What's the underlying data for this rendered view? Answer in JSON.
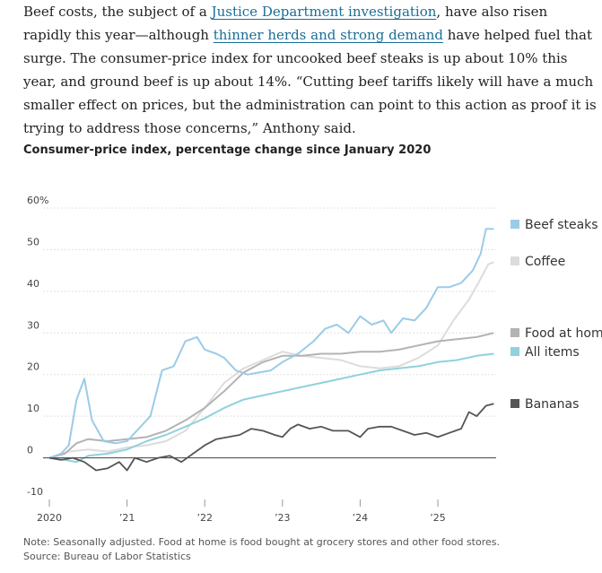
{
  "article": {
    "p1": "Beef costs, the subject of a ",
    "link1": "Justice Department investigation",
    "p2": ", have also risen rapidly this year—although ",
    "link2": "thinner herds and strong demand",
    "p3": " have helped fuel that surge. The consumer-price index for uncooked beef steaks is up about 10% this year, and ground beef is up about 14%. “Cutting beef tariffs likely will have a much smaller effect on prices, but the administration can point to this action as proof it is trying to address those concerns,” Anthony said."
  },
  "footnote": {
    "note": "Note: Seasonally adjusted. Food at home is food bought at grocery stores and other food stores.",
    "source": "Source: Bureau of Labor Statistics"
  },
  "chart_data": {
    "type": "line",
    "title": "Consumer-price index, percentage change since January 2020",
    "xlabel": "",
    "ylabel": "",
    "xlim": [
      2020.0,
      2025.75
    ],
    "ylim": [
      -10,
      60
    ],
    "y_ticks": [
      {
        "value": 60,
        "label": "60%"
      },
      {
        "value": 50,
        "label": "50"
      },
      {
        "value": 40,
        "label": "40"
      },
      {
        "value": 30,
        "label": "30"
      },
      {
        "value": 20,
        "label": "20"
      },
      {
        "value": 10,
        "label": "10"
      },
      {
        "value": 0,
        "label": "0"
      },
      {
        "value": -10,
        "label": "-10"
      }
    ],
    "x_ticks": [
      {
        "value": 2020,
        "label": "2020"
      },
      {
        "value": 2021,
        "label": "’21"
      },
      {
        "value": 2022,
        "label": "’22"
      },
      {
        "value": 2023,
        "label": "’23"
      },
      {
        "value": 2024,
        "label": "’24"
      },
      {
        "value": 2025,
        "label": "’25"
      }
    ],
    "grid": true,
    "series": [
      {
        "name": "Coffee",
        "color": "#dcdcdc",
        "label_value": 47,
        "x": [
          2020.0,
          2020.25,
          2020.5,
          2020.75,
          2021.0,
          2021.25,
          2021.5,
          2021.75,
          2022.0,
          2022.25,
          2022.5,
          2022.75,
          2023.0,
          2023.25,
          2023.5,
          2023.75,
          2024.0,
          2024.25,
          2024.5,
          2024.75,
          2025.0,
          2025.2,
          2025.4,
          2025.55,
          2025.65,
          2025.72
        ],
        "values": [
          0,
          1.5,
          2.0,
          1.5,
          2.5,
          3.0,
          4.0,
          6.5,
          12.0,
          18.0,
          21.5,
          23.5,
          25.5,
          24.5,
          24.0,
          23.5,
          22.0,
          21.5,
          22.0,
          24.0,
          27.0,
          33.0,
          38.0,
          43.0,
          46.5,
          47.0
        ]
      },
      {
        "name": "Food at home",
        "color": "#b3b3b3",
        "label_value": 30,
        "x": [
          2020.0,
          2020.2,
          2020.35,
          2020.5,
          2020.75,
          2021.0,
          2021.25,
          2021.5,
          2021.75,
          2022.0,
          2022.25,
          2022.5,
          2022.75,
          2023.0,
          2023.25,
          2023.5,
          2023.75,
          2024.0,
          2024.25,
          2024.5,
          2024.75,
          2025.0,
          2025.25,
          2025.5,
          2025.72
        ],
        "values": [
          0,
          1.0,
          3.5,
          4.5,
          4.0,
          4.5,
          5.0,
          6.5,
          9.0,
          12.0,
          16.0,
          20.5,
          23.0,
          24.5,
          24.5,
          25.0,
          25.0,
          25.5,
          25.5,
          26.0,
          27.0,
          28.0,
          28.5,
          29.0,
          30.0
        ]
      },
      {
        "name": "Beef steaks",
        "color": "#9bcbe8",
        "label_value": 55,
        "x": [
          2020.0,
          2020.15,
          2020.25,
          2020.35,
          2020.45,
          2020.55,
          2020.7,
          2020.85,
          2021.0,
          2021.15,
          2021.3,
          2021.45,
          2021.6,
          2021.75,
          2021.9,
          2022.0,
          2022.15,
          2022.25,
          2022.4,
          2022.55,
          2022.7,
          2022.85,
          2023.0,
          2023.2,
          2023.4,
          2023.55,
          2023.7,
          2023.85,
          2024.0,
          2024.15,
          2024.3,
          2024.4,
          2024.55,
          2024.7,
          2024.85,
          2025.0,
          2025.15,
          2025.3,
          2025.45,
          2025.55,
          2025.62,
          2025.72
        ],
        "values": [
          0,
          1.0,
          3.0,
          14.0,
          19.0,
          9.0,
          4.0,
          3.5,
          4.0,
          7.0,
          10.0,
          21.0,
          22.0,
          28.0,
          29.0,
          26.0,
          25.0,
          24.0,
          21.0,
          20.0,
          20.5,
          21.0,
          23.0,
          25.0,
          28.0,
          31.0,
          32.0,
          30.0,
          34.0,
          32.0,
          33.0,
          30.0,
          33.5,
          33.0,
          36.0,
          41.0,
          41.0,
          42.0,
          45.0,
          49.0,
          55.0,
          55.0
        ]
      },
      {
        "name": "All items",
        "color": "#8fd1de",
        "label_value": 25,
        "x": [
          2020.0,
          2020.2,
          2020.35,
          2020.5,
          2020.75,
          2021.0,
          2021.25,
          2021.5,
          2021.75,
          2022.0,
          2022.25,
          2022.5,
          2022.75,
          2023.0,
          2023.25,
          2023.5,
          2023.75,
          2024.0,
          2024.25,
          2024.5,
          2024.75,
          2025.0,
          2025.25,
          2025.5,
          2025.72
        ],
        "values": [
          0,
          -0.5,
          -1.0,
          0.5,
          1.0,
          2.0,
          4.0,
          5.5,
          7.5,
          9.5,
          12.0,
          14.0,
          15.0,
          16.0,
          17.0,
          18.0,
          19.0,
          20.0,
          21.0,
          21.5,
          22.0,
          23.0,
          23.5,
          24.5,
          25.0
        ]
      },
      {
        "name": "Bananas",
        "color": "#555555",
        "label_value": 13,
        "x": [
          2020.0,
          2020.15,
          2020.3,
          2020.45,
          2020.6,
          2020.75,
          2020.9,
          2021.0,
          2021.1,
          2021.25,
          2021.4,
          2021.55,
          2021.7,
          2021.85,
          2022.0,
          2022.15,
          2022.3,
          2022.45,
          2022.6,
          2022.75,
          2022.9,
          2023.0,
          2023.1,
          2023.2,
          2023.35,
          2023.5,
          2023.65,
          2023.85,
          2024.0,
          2024.1,
          2024.25,
          2024.4,
          2024.55,
          2024.7,
          2024.85,
          2025.0,
          2025.15,
          2025.3,
          2025.4,
          2025.5,
          2025.62,
          2025.72
        ],
        "values": [
          0,
          -0.5,
          0,
          -1.0,
          -3.0,
          -2.5,
          -1.0,
          -3.0,
          0,
          -1.0,
          0,
          0.5,
          -1.0,
          1.0,
          3.0,
          4.5,
          5.0,
          5.5,
          7.0,
          6.5,
          5.5,
          5.0,
          7.0,
          8.0,
          7.0,
          7.5,
          6.5,
          6.5,
          5.0,
          7.0,
          7.5,
          7.5,
          6.5,
          5.5,
          6.0,
          5.0,
          6.0,
          7.0,
          11.0,
          10.0,
          12.5,
          13.0
        ]
      }
    ]
  }
}
